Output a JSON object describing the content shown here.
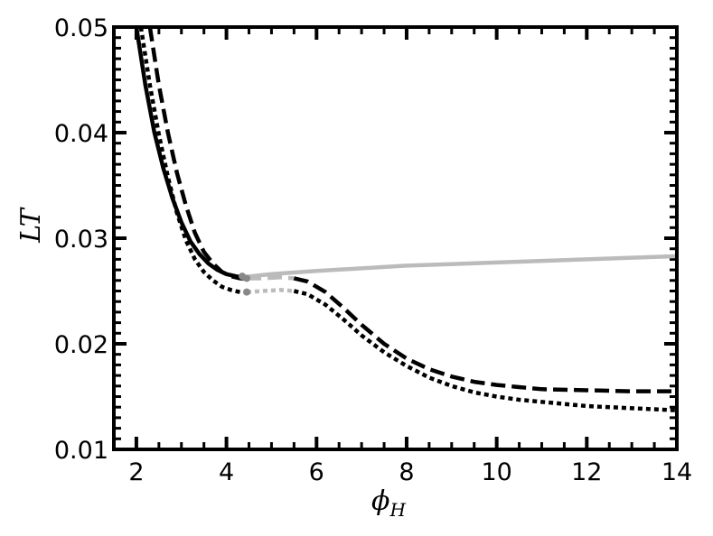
{
  "chart_data": {
    "type": "line",
    "title": "",
    "xlabel": "ϕ",
    "xlabel_subscript": "H",
    "ylabel": "LT",
    "xlim": [
      1.5,
      14
    ],
    "ylim": [
      0.01,
      0.05
    ],
    "xticks": [
      2,
      4,
      6,
      8,
      10,
      12,
      14
    ],
    "xtick_labels": [
      "2",
      "4",
      "6",
      "8",
      "10",
      "12",
      "14"
    ],
    "yticks": [
      0.01,
      0.02,
      0.03,
      0.04,
      0.05
    ],
    "ytick_labels": [
      "0.01",
      "0.02",
      "0.03",
      "0.04",
      "0.05"
    ],
    "grid": false,
    "legend": "none",
    "series": [
      {
        "style": "solid",
        "color": "#000000",
        "points": [
          [
            2.0,
            0.05
          ],
          [
            2.2,
            0.0445
          ],
          [
            2.4,
            0.04
          ],
          [
            2.6,
            0.0366
          ],
          [
            2.8,
            0.0338
          ],
          [
            3.0,
            0.0315
          ],
          [
            3.2,
            0.0297
          ],
          [
            3.4,
            0.0285
          ],
          [
            3.6,
            0.0276
          ],
          [
            3.8,
            0.027
          ],
          [
            4.0,
            0.0266
          ],
          [
            4.2,
            0.0264
          ],
          [
            4.35,
            0.0263
          ]
        ]
      },
      {
        "style": "solid",
        "color": "#bbbbbb",
        "points": [
          [
            4.35,
            0.0263
          ],
          [
            5.0,
            0.0266
          ],
          [
            6.0,
            0.0269
          ],
          [
            8.0,
            0.0274
          ],
          [
            10.0,
            0.0277
          ],
          [
            12.0,
            0.028
          ],
          [
            14.0,
            0.0283
          ]
        ]
      },
      {
        "style": "dashed",
        "color": "#000000",
        "points": [
          [
            2.3,
            0.05
          ],
          [
            2.5,
            0.0445
          ],
          [
            2.7,
            0.04
          ],
          [
            2.9,
            0.0362
          ],
          [
            3.1,
            0.0331
          ],
          [
            3.3,
            0.0305
          ],
          [
            3.5,
            0.0287
          ],
          [
            3.7,
            0.0276
          ],
          [
            3.9,
            0.0268
          ],
          [
            4.1,
            0.0264
          ],
          [
            4.3,
            0.0262
          ],
          [
            4.45,
            0.0262
          ]
        ]
      },
      {
        "style": "dashed",
        "color": "#bbbbbb",
        "points": [
          [
            4.45,
            0.0262
          ],
          [
            4.8,
            0.0262
          ],
          [
            5.2,
            0.0263
          ],
          [
            5.5,
            0.0262
          ]
        ]
      },
      {
        "style": "dashed",
        "color": "#000000",
        "points": [
          [
            5.5,
            0.0262
          ],
          [
            5.8,
            0.0259
          ],
          [
            6.2,
            0.0249
          ],
          [
            6.6,
            0.0234
          ],
          [
            7.0,
            0.0218
          ],
          [
            7.5,
            0.02
          ],
          [
            8.0,
            0.0186
          ],
          [
            8.5,
            0.0176
          ],
          [
            9.0,
            0.0169
          ],
          [
            9.5,
            0.0164
          ],
          [
            10.0,
            0.0161
          ],
          [
            10.5,
            0.0159
          ],
          [
            11.0,
            0.0157
          ],
          [
            12.0,
            0.0156
          ],
          [
            13.0,
            0.0155
          ],
          [
            14.0,
            0.0155
          ]
        ]
      },
      {
        "style": "dotted",
        "color": "#000000",
        "points": [
          [
            2.1,
            0.05
          ],
          [
            2.3,
            0.0445
          ],
          [
            2.5,
            0.0398
          ],
          [
            2.7,
            0.0358
          ],
          [
            2.9,
            0.0324
          ],
          [
            3.1,
            0.0298
          ],
          [
            3.3,
            0.028
          ],
          [
            3.5,
            0.0268
          ],
          [
            3.7,
            0.026
          ],
          [
            3.9,
            0.0254
          ],
          [
            4.1,
            0.0251
          ],
          [
            4.3,
            0.0249
          ],
          [
            4.45,
            0.0249
          ]
        ]
      },
      {
        "style": "dotted",
        "color": "#bbbbbb",
        "points": [
          [
            4.45,
            0.0249
          ],
          [
            4.8,
            0.025
          ],
          [
            5.2,
            0.0251
          ],
          [
            5.5,
            0.025
          ]
        ]
      },
      {
        "style": "dotted",
        "color": "#000000",
        "points": [
          [
            5.5,
            0.025
          ],
          [
            5.8,
            0.0247
          ],
          [
            6.2,
            0.0237
          ],
          [
            6.6,
            0.0223
          ],
          [
            7.0,
            0.0208
          ],
          [
            7.5,
            0.0192
          ],
          [
            8.0,
            0.0179
          ],
          [
            8.5,
            0.0168
          ],
          [
            9.0,
            0.016
          ],
          [
            9.5,
            0.0154
          ],
          [
            10.0,
            0.015
          ],
          [
            10.5,
            0.0147
          ],
          [
            11.0,
            0.0145
          ],
          [
            12.0,
            0.0141
          ],
          [
            13.0,
            0.0139
          ],
          [
            14.0,
            0.0137
          ]
        ]
      }
    ],
    "markers": [
      {
        "x": 4.35,
        "y": 0.0264,
        "color": "#888888"
      },
      {
        "x": 4.45,
        "y": 0.0262,
        "color": "#888888"
      },
      {
        "x": 4.45,
        "y": 0.0249,
        "color": "#888888"
      }
    ]
  }
}
